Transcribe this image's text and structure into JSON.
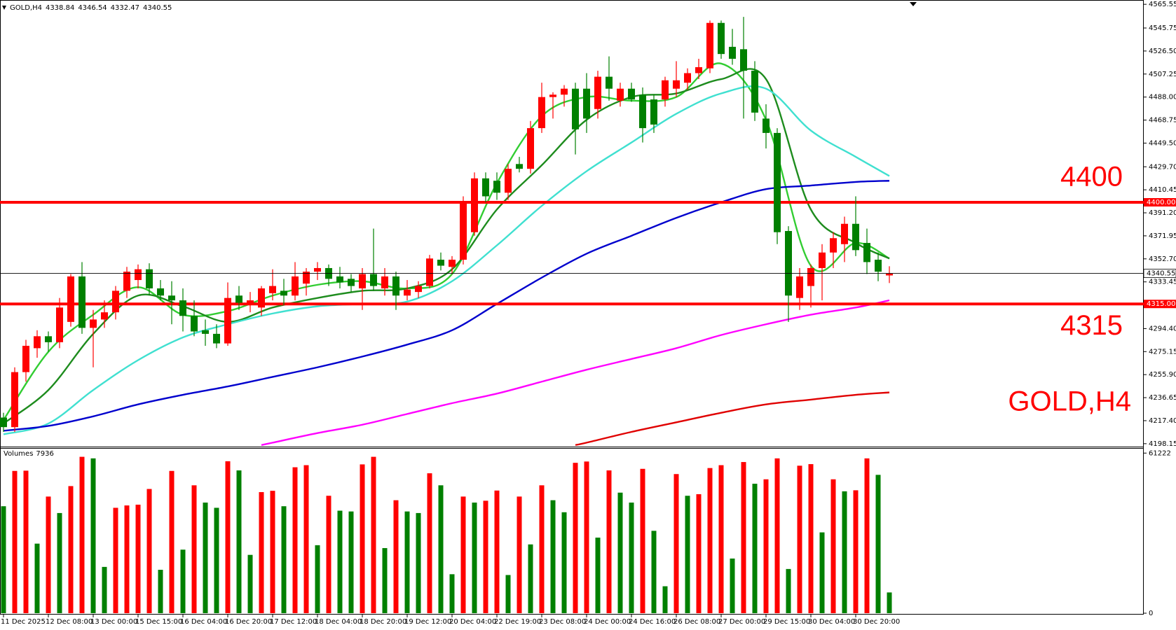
{
  "chart_data": {
    "type": "candlestick",
    "title": "GOLD,H4",
    "categories": [
      "11 Dec 2025",
      null,
      null,
      null,
      "12 Dec 08:00",
      null,
      null,
      null,
      "13 Dec 00:00",
      null,
      null,
      null,
      "15 Dec 15:00",
      null,
      null,
      null,
      "16 Dec 04:00",
      null,
      null,
      null,
      "16 Dec 20:00",
      null,
      null,
      null,
      "17 Dec 12:00",
      null,
      null,
      null,
      "18 Dec 04:00",
      null,
      null,
      null,
      "18 Dec 20:00",
      null,
      null,
      null,
      "19 Dec 12:00",
      null,
      null,
      null,
      "20 Dec 04:00",
      null,
      null,
      null,
      "22 Dec 19:00",
      null,
      null,
      null,
      "23 Dec 08:00",
      null,
      null,
      null,
      "24 Dec 00:00",
      null,
      null,
      null,
      "24 Dec 16:00",
      null,
      null,
      null,
      "26 Dec 08:00",
      null,
      null,
      null,
      "27 Dec 00:00",
      null,
      null,
      null,
      "29 Dec 15:00",
      null,
      null,
      null,
      "30 Dec 04:00",
      null,
      null,
      null,
      "30 Dec 20:00",
      null,
      null,
      null
    ],
    "open": [
      4220,
      4212,
      4258,
      4278,
      4288,
      4283,
      4300,
      4338,
      4295,
      4302,
      4308,
      4326,
      4335,
      4344,
      4328,
      4322,
      4318,
      4305,
      4293,
      4290,
      4282,
      4322,
      4316,
      4312,
      4324,
      4326,
      4322,
      4332,
      4342,
      4345,
      4338,
      4336,
      4328,
      4340,
      4328,
      4338,
      4322,
      4325,
      4330,
      4352,
      4346,
      4352,
      4375,
      4420,
      4418,
      4408,
      4432,
      4428,
      4462,
      4488,
      4490,
      4495,
      4495,
      4478,
      4505,
      4485,
      4495,
      4490,
      4486,
      4486,
      4495,
      4500,
      4508,
      4512,
      4550,
      4530,
      4528,
      4510,
      4470,
      4458,
      4376,
      4320,
      4330,
      4345,
      4358,
      4365,
      4382,
      4366,
      4352,
      4338.84
    ],
    "high": [
      4224,
      4262,
      4285,
      4293,
      4292,
      4320,
      4340,
      4350,
      4310,
      4318,
      4330,
      4346,
      4348,
      4349,
      4335,
      4334,
      4328,
      4318,
      4302,
      4298,
      4333,
      4330,
      4325,
      4330,
      4344,
      4336,
      4350,
      4345,
      4350,
      4348,
      4346,
      4340,
      4345,
      4378,
      4345,
      4342,
      4335,
      4334,
      4356,
      4358,
      4355,
      4405,
      4425,
      4425,
      4425,
      4432,
      4438,
      4468,
      4500,
      4492,
      4498,
      4500,
      4508,
      4510,
      4522,
      4500,
      4500,
      4496,
      4490,
      4505,
      4518,
      4512,
      4520,
      4552,
      4552,
      4545,
      4555,
      4518,
      4482,
      4462,
      4380,
      4345,
      4348,
      4365,
      4375,
      4388,
      4405,
      4378,
      4358,
      4346.54
    ],
    "low": [
      4208,
      4208,
      4250,
      4270,
      4275,
      4278,
      4296,
      4290,
      4262,
      4295,
      4302,
      4320,
      4328,
      4322,
      4318,
      4298,
      4292,
      4288,
      4280,
      4278,
      4280,
      4310,
      4308,
      4305,
      4318,
      4314,
      4318,
      4322,
      4335,
      4330,
      4328,
      4325,
      4310,
      4326,
      4322,
      4310,
      4318,
      4320,
      4328,
      4343,
      4340,
      4348,
      4372,
      4400,
      4402,
      4402,
      4425,
      4424,
      4458,
      4470,
      4480,
      4440,
      4458,
      4470,
      4485,
      4480,
      4484,
      4450,
      4458,
      4480,
      4488,
      4494,
      4503,
      4508,
      4520,
      4515,
      4470,
      4468,
      4445,
      4365,
      4300,
      4310,
      4312,
      4318,
      4345,
      4350,
      4355,
      4340,
      4334,
      4332.47
    ],
    "close": [
      4212,
      4258,
      4280,
      4288,
      4283,
      4312,
      4338,
      4295,
      4302,
      4308,
      4326,
      4342,
      4344,
      4328,
      4322,
      4318,
      4305,
      4292,
      4290,
      4282,
      4320,
      4316,
      4318,
      4328,
      4330,
      4322,
      4338,
      4342,
      4345,
      4336,
      4333,
      4330,
      4340,
      4330,
      4338,
      4322,
      4327,
      4330,
      4353,
      4347,
      4352,
      4399,
      4420,
      4405,
      4408,
      4428,
      4428,
      4462,
      4488,
      4490,
      4495,
      4461,
      4470,
      4505,
      4495,
      4495,
      4486,
      4462,
      4465,
      4502,
      4502,
      4508,
      4513,
      4550,
      4524,
      4520,
      4510,
      4475,
      4458,
      4375,
      4322,
      4338,
      4345,
      4358,
      4370,
      4382,
      4360,
      4350,
      4342,
      4340.55
    ],
    "up_color": "#ff0000",
    "down_color": "#008000",
    "ylim": [
      4196.3,
      4567.4
    ],
    "yticks": [
      4565.55,
      4545.75,
      {
        "value": 4526.5,
        "label": "4526.50"
      },
      4507.25,
      {
        "value": 4488,
        "label": "4488.00"
      },
      4468.75,
      {
        "value": 4449.5,
        "label": "4449.50"
      },
      {
        "value": 4429.7,
        "label": "4429.70"
      },
      4410.45,
      {
        "value": 4391.2,
        "label": "4391.20"
      },
      4371.95,
      {
        "value": 4352.7,
        "label": "4352.70"
      },
      4333.45,
      {
        "value": 4294.4,
        "label": "4294.40"
      },
      4275.15,
      {
        "value": 4255.9,
        "label": "4255.90"
      },
      4236.65,
      {
        "value": 4217.4,
        "label": "4217.40"
      },
      4198.15
    ],
    "lines": [
      {
        "color": "#32cd32",
        "x": [
          0,
          4,
          8,
          12,
          16,
          20,
          24,
          28,
          32,
          36,
          40,
          44,
          48,
          52,
          56,
          60,
          64,
          68,
          72,
          76,
          79
        ],
        "values": [
          4218,
          4275,
          4306,
          4329,
          4306,
          4309,
          4322,
          4331,
          4334,
          4328,
          4340,
          4416,
          4472,
          4488,
          4485,
          4488,
          4516,
          4469,
          4347,
          4366,
          4353
        ]
      },
      {
        "color": "#1e8c1e",
        "x": [
          0,
          4,
          8,
          12,
          16,
          20,
          24,
          28,
          32,
          36,
          40,
          44,
          48,
          52,
          56,
          60,
          64,
          68,
          72,
          76,
          79
        ],
        "values": [
          4215,
          4243,
          4290,
          4322,
          4313,
          4300,
          4312,
          4320,
          4326,
          4328,
          4344,
          4394,
          4431,
          4469,
          4488,
          4491,
          4503,
          4503,
          4394,
          4366,
          4353
        ]
      },
      {
        "color": "#40e0d0",
        "x": [
          0,
          4,
          8,
          12,
          16,
          20,
          24,
          28,
          32,
          36,
          40,
          44,
          48,
          52,
          56,
          60,
          64,
          68,
          72,
          76,
          79
        ],
        "values": [
          4206,
          4215,
          4243,
          4268,
          4287,
          4298,
          4307,
          4313,
          4315,
          4317,
          4334,
          4364,
          4397,
          4426,
          4450,
          4474,
          4491,
          4495,
          4460,
          4438,
          4422
        ]
      },
      {
        "color": "#0000cd",
        "x": [
          0,
          4,
          8,
          12,
          16,
          20,
          24,
          28,
          32,
          36,
          40,
          44,
          48,
          52,
          56,
          60,
          64,
          68,
          72,
          76,
          79
        ],
        "values": [
          4209,
          4213,
          4221,
          4231,
          4239,
          4246,
          4254,
          4262,
          4271,
          4281,
          4293,
          4315,
          4337,
          4357,
          4372,
          4387,
          4400,
          4411,
          4414,
          4417,
          4418
        ]
      },
      {
        "color": "#ff00ff",
        "x": [
          23,
          24,
          28,
          32,
          36,
          40,
          44,
          48,
          52,
          56,
          60,
          64,
          68,
          72,
          76,
          79
        ],
        "values": [
          4197,
          4199,
          4207,
          4214,
          4223,
          4232,
          4240,
          4250,
          4260,
          4269,
          4278,
          4289,
          4298,
          4306,
          4312,
          4318
        ]
      },
      {
        "color": "#e00000",
        "x": [
          51,
          52,
          56,
          60,
          64,
          68,
          72,
          76,
          79
        ],
        "values": [
          4197,
          4199,
          4208,
          4216,
          4224,
          4231,
          4235,
          4239,
          4241
        ]
      }
    ],
    "hlines": [
      {
        "value": 4400,
        "label": "4400.00",
        "annotation": "4400",
        "color": "#ff0000"
      },
      {
        "value": 4315,
        "label": "4315.00",
        "annotation": "4315",
        "color": "#ff0000"
      }
    ],
    "volume": {
      "title": "Volumes",
      "values": [
        40900,
        54400,
        54500,
        26600,
        44600,
        38300,
        48600,
        59800,
        59200,
        17700,
        40300,
        41200,
        41500,
        47500,
        16600,
        54400,
        24300,
        48900,
        42300,
        40300,
        58100,
        54600,
        22300,
        46300,
        46800,
        40900,
        55800,
        56600,
        26000,
        44900,
        39200,
        38900,
        56900,
        59800,
        24900,
        43200,
        38900,
        38300,
        53500,
        48900,
        14900,
        44600,
        42300,
        43000,
        46900,
        14600,
        44600,
        26300,
        48900,
        43200,
        38600,
        57500,
        58000,
        28900,
        54600,
        46100,
        42300,
        55200,
        31500,
        10300,
        53200,
        44900,
        45500,
        55500,
        56600,
        20900,
        57800,
        49500,
        51200,
        59200,
        16900,
        56400,
        57000,
        30900,
        51200,
        46600,
        47000,
        59200,
        52900,
        7936
      ],
      "ylim": [
        0,
        62900
      ],
      "yticks": [
        0,
        61222
      ]
    }
  }
}
